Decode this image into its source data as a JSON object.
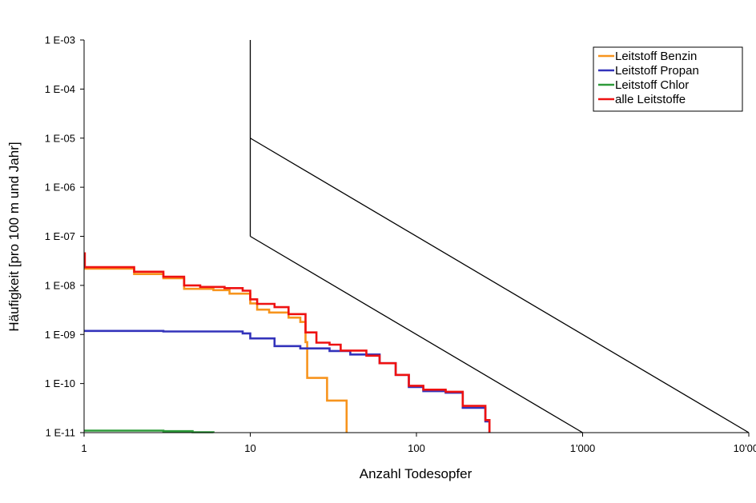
{
  "chart_data": {
    "type": "line",
    "title": "",
    "xlabel": "Anzahl Todesopfer",
    "ylabel": "Häufigkeit [pro 100 m und Jahr]",
    "x_scale": "log",
    "y_scale": "log",
    "xlim": [
      1,
      10000
    ],
    "ylim": [
      1e-11,
      0.001
    ],
    "x_ticks": [
      {
        "value": 1,
        "label": "1"
      },
      {
        "value": 10,
        "label": "10"
      },
      {
        "value": 100,
        "label": "100"
      },
      {
        "value": 1000,
        "label": "1'000"
      },
      {
        "value": 10000,
        "label": "10'000"
      }
    ],
    "y_ticks": [
      {
        "value": 0.001,
        "label": "1 E-03"
      },
      {
        "value": 0.0001,
        "label": "1 E-04"
      },
      {
        "value": 1e-05,
        "label": "1 E-05"
      },
      {
        "value": 1e-06,
        "label": "1 E-06"
      },
      {
        "value": 1e-07,
        "label": "1 E-07"
      },
      {
        "value": 1e-08,
        "label": "1 E-08"
      },
      {
        "value": 1e-09,
        "label": "1 E-09"
      },
      {
        "value": 1e-10,
        "label": "1 E-10"
      },
      {
        "value": 1e-11,
        "label": "1 E-11"
      }
    ],
    "grid": false,
    "legend_position": "top-right",
    "series": [
      {
        "name": "Leitstoff Benzin",
        "color": "#f7941d",
        "step": true,
        "points": [
          [
            1,
            2.2e-08
          ],
          [
            2,
            1.7e-08
          ],
          [
            3,
            1.4e-08
          ],
          [
            4,
            8.5e-09
          ],
          [
            6,
            8e-09
          ],
          [
            7.5,
            6.8e-09
          ],
          [
            10,
            4.3e-09
          ],
          [
            11,
            3.2e-09
          ],
          [
            13,
            2.8e-09
          ],
          [
            17,
            2.2e-09
          ],
          [
            20,
            1.8e-09
          ],
          [
            21.5,
            7e-10
          ],
          [
            22,
            1.3e-10
          ],
          [
            29,
            4.5e-11
          ],
          [
            38,
            1e-11
          ]
        ]
      },
      {
        "name": "Leitstoff Propan",
        "color": "#3333bb",
        "step": true,
        "points": [
          [
            1,
            1.18e-09
          ],
          [
            3,
            1.15e-09
          ],
          [
            9,
            1.05e-09
          ],
          [
            10,
            8.3e-10
          ],
          [
            14,
            5.8e-10
          ],
          [
            20,
            5.2e-10
          ],
          [
            30,
            4.6e-10
          ],
          [
            40,
            3.9e-10
          ],
          [
            60,
            2.6e-10
          ],
          [
            75,
            1.5e-10
          ],
          [
            90,
            8.5e-11
          ],
          [
            110,
            7e-11
          ],
          [
            150,
            6.5e-11
          ],
          [
            190,
            3.2e-11
          ],
          [
            260,
            1.7e-11
          ],
          [
            275,
            1e-11
          ]
        ]
      },
      {
        "name": "Leitstoff Chlor",
        "color": "#2e9b3a",
        "step": true,
        "points": [
          [
            1,
            1.1e-11
          ],
          [
            3,
            1.07e-11
          ],
          [
            4.5,
            1.02e-11
          ],
          [
            6,
            1e-11
          ]
        ]
      },
      {
        "name": "alle Leitstoffe",
        "color": "#ee1111",
        "step": true,
        "points": [
          [
            1,
            4.5e-08
          ],
          [
            1.01,
            2.35e-08
          ],
          [
            2,
            1.9e-08
          ],
          [
            3,
            1.5e-08
          ],
          [
            4,
            1e-08
          ],
          [
            5,
            9.3e-09
          ],
          [
            7,
            8.8e-09
          ],
          [
            9,
            7.8e-09
          ],
          [
            10,
            5.2e-09
          ],
          [
            11,
            4.2e-09
          ],
          [
            14,
            3.6e-09
          ],
          [
            17,
            2.6e-09
          ],
          [
            21.5,
            1.1e-09
          ],
          [
            25,
            6.8e-10
          ],
          [
            30,
            6.2e-10
          ],
          [
            35,
            4.7e-10
          ],
          [
            50,
            3.7e-10
          ],
          [
            60,
            2.6e-10
          ],
          [
            75,
            1.5e-10
          ],
          [
            90,
            9e-11
          ],
          [
            110,
            7.5e-11
          ],
          [
            150,
            6.8e-11
          ],
          [
            190,
            3.5e-11
          ],
          [
            260,
            1.8e-11
          ],
          [
            275,
            1e-11
          ]
        ]
      }
    ],
    "limit_lines": {
      "color": "#000000",
      "lines": [
        [
          [
            10,
            0.001
          ],
          [
            10,
            1e-07
          ]
        ],
        [
          [
            10,
            1e-05
          ],
          [
            10000,
            1e-11
          ]
        ],
        [
          [
            10,
            1e-07
          ],
          [
            1000,
            1e-11
          ]
        ]
      ]
    }
  }
}
